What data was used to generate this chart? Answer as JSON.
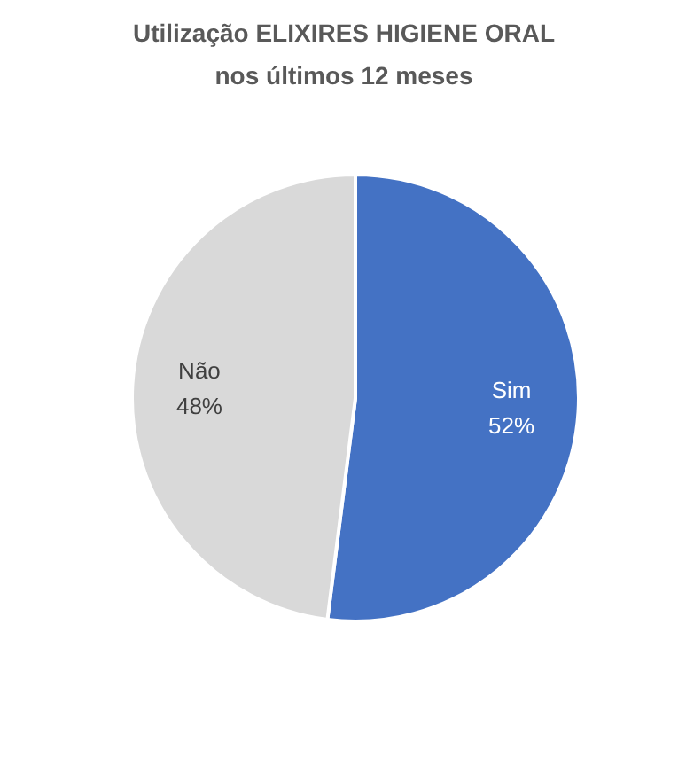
{
  "chart_data": {
    "type": "pie",
    "title": "Utilização ELIXIRES HIGIENE ORAL\nnos últimos 12 meses",
    "categories": [
      "Sim",
      "Não"
    ],
    "values": [
      52,
      48
    ],
    "value_labels": [
      "52%",
      "48%"
    ],
    "colors": [
      "#4472c4",
      "#d9d9d9"
    ]
  }
}
